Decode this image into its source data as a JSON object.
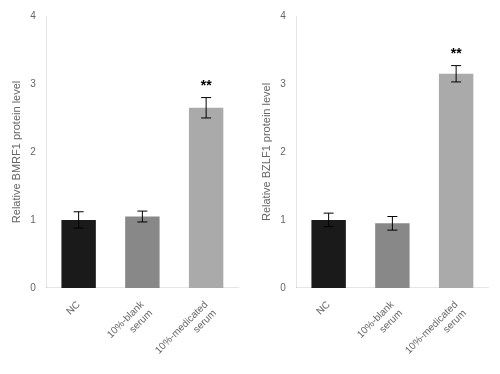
{
  "chart_data": [
    {
      "type": "bar",
      "categories": [
        "NC",
        "10%-blank serum",
        "10%-medicated serum"
      ],
      "values": [
        1.0,
        1.05,
        2.65
      ],
      "errors": [
        0.12,
        0.08,
        0.15
      ],
      "colors": [
        "#1a1a1a",
        "#888888",
        "#aaaaaa"
      ],
      "y_label": "Relative BMRF1 protein level",
      "ylim": [
        0,
        4
      ],
      "yticks": [
        0,
        1,
        2,
        3,
        4
      ],
      "grid": false,
      "annotations": [
        {
          "text": "**",
          "category": "10%-medicated serum"
        }
      ]
    },
    {
      "type": "bar",
      "categories": [
        "NC",
        "10%-blank serum",
        "10%-medicated serum"
      ],
      "values": [
        1.0,
        0.95,
        3.15
      ],
      "errors": [
        0.1,
        0.1,
        0.12
      ],
      "colors": [
        "#1a1a1a",
        "#888888",
        "#aaaaaa"
      ],
      "y_label": "Relative BZLF1 protein level",
      "ylim": [
        0,
        4
      ],
      "yticks": [
        0,
        1,
        2,
        3,
        4
      ],
      "grid": false,
      "annotations": [
        {
          "text": "**",
          "category": "10%-medicated serum"
        }
      ]
    }
  ]
}
